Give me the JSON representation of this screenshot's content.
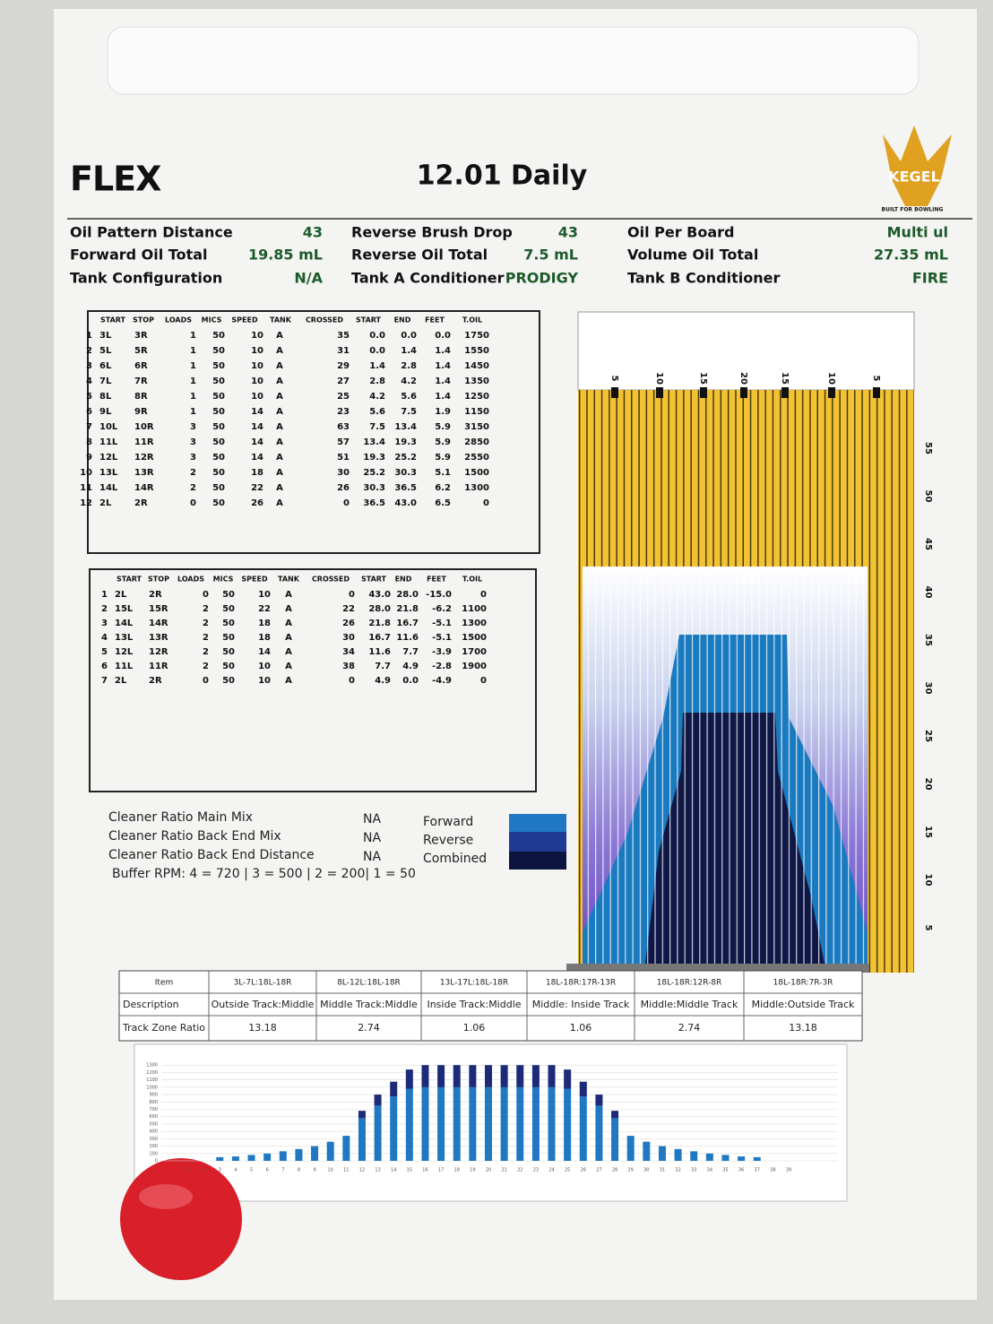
{
  "header": {
    "logo": "FLEX",
    "title": "12.01 Daily",
    "brand": "KEGEL",
    "tagline": "BUILT FOR BOWLING"
  },
  "specs": [
    {
      "label": "Oil Pattern Distance",
      "value": "43"
    },
    {
      "label": "Forward Oil Total",
      "value": "19.85 mL"
    },
    {
      "label": "Tank Configuration",
      "value": "N/A"
    },
    {
      "label": "Reverse Brush Drop",
      "value": "43"
    },
    {
      "label": "Reverse Oil Total",
      "value": "7.5 mL"
    },
    {
      "label": "Tank A Conditioner",
      "value": "PRODIGY"
    },
    {
      "label": "Oil Per Board",
      "value": "Multi ul"
    },
    {
      "label": "Volume Oil Total",
      "value": "27.35 mL"
    },
    {
      "label": "Tank B Conditioner",
      "value": "FIRE"
    }
  ],
  "forward_table": {
    "columns": [
      "START",
      "STOP",
      "LOADS",
      "MICS",
      "SPEED",
      "TANK",
      "CROSSED",
      "START",
      "END",
      "FEET",
      "T.OIL"
    ],
    "rows": [
      [
        "1",
        "3L",
        "3R",
        "1",
        "50",
        "10",
        "A",
        "35",
        "0.0",
        "0.0",
        "0.0",
        "1750"
      ],
      [
        "2",
        "5L",
        "5R",
        "1",
        "50",
        "10",
        "A",
        "31",
        "0.0",
        "1.4",
        "1.4",
        "1550"
      ],
      [
        "3",
        "6L",
        "6R",
        "1",
        "50",
        "10",
        "A",
        "29",
        "1.4",
        "2.8",
        "1.4",
        "1450"
      ],
      [
        "4",
        "7L",
        "7R",
        "1",
        "50",
        "10",
        "A",
        "27",
        "2.8",
        "4.2",
        "1.4",
        "1350"
      ],
      [
        "5",
        "8L",
        "8R",
        "1",
        "50",
        "10",
        "A",
        "25",
        "4.2",
        "5.6",
        "1.4",
        "1250"
      ],
      [
        "6",
        "9L",
        "9R",
        "1",
        "50",
        "14",
        "A",
        "23",
        "5.6",
        "7.5",
        "1.9",
        "1150"
      ],
      [
        "7",
        "10L",
        "10R",
        "3",
        "50",
        "14",
        "A",
        "63",
        "7.5",
        "13.4",
        "5.9",
        "3150"
      ],
      [
        "8",
        "11L",
        "11R",
        "3",
        "50",
        "14",
        "A",
        "57",
        "13.4",
        "19.3",
        "5.9",
        "2850"
      ],
      [
        "9",
        "12L",
        "12R",
        "3",
        "50",
        "14",
        "A",
        "51",
        "19.3",
        "25.2",
        "5.9",
        "2550"
      ],
      [
        "10",
        "13L",
        "13R",
        "2",
        "50",
        "18",
        "A",
        "30",
        "25.2",
        "30.3",
        "5.1",
        "1500"
      ],
      [
        "11",
        "14L",
        "14R",
        "2",
        "50",
        "22",
        "A",
        "26",
        "30.3",
        "36.5",
        "6.2",
        "1300"
      ],
      [
        "12",
        "2L",
        "2R",
        "0",
        "50",
        "26",
        "A",
        "0",
        "36.5",
        "43.0",
        "6.5",
        "0"
      ]
    ]
  },
  "reverse_table": {
    "columns": [
      "START",
      "STOP",
      "LOADS",
      "MICS",
      "SPEED",
      "TANK",
      "CROSSED",
      "START",
      "END",
      "FEET",
      "T.OIL"
    ],
    "rows": [
      [
        "1",
        "2L",
        "2R",
        "0",
        "50",
        "10",
        "A",
        "0",
        "43.0",
        "28.0",
        "-15.0",
        "0"
      ],
      [
        "2",
        "15L",
        "15R",
        "2",
        "50",
        "22",
        "A",
        "22",
        "28.0",
        "21.8",
        "-6.2",
        "1100"
      ],
      [
        "3",
        "14L",
        "14R",
        "2",
        "50",
        "18",
        "A",
        "26",
        "21.8",
        "16.7",
        "-5.1",
        "1300"
      ],
      [
        "4",
        "13L",
        "13R",
        "2",
        "50",
        "18",
        "A",
        "30",
        "16.7",
        "11.6",
        "-5.1",
        "1500"
      ],
      [
        "5",
        "12L",
        "12R",
        "2",
        "50",
        "14",
        "A",
        "34",
        "11.6",
        "7.7",
        "-3.9",
        "1700"
      ],
      [
        "6",
        "11L",
        "11R",
        "2",
        "50",
        "10",
        "A",
        "38",
        "7.7",
        "4.9",
        "-2.8",
        "1900"
      ],
      [
        "7",
        "2L",
        "2R",
        "0",
        "50",
        "10",
        "A",
        "0",
        "4.9",
        "0.0",
        "-4.9",
        "0"
      ]
    ]
  },
  "cleaner": {
    "items": [
      {
        "label": "Cleaner Ratio Main Mix",
        "value": "NA"
      },
      {
        "label": "Cleaner Ratio Back End Mix",
        "value": "NA"
      },
      {
        "label": "Cleaner Ratio Back End Distance",
        "value": "NA"
      }
    ],
    "buffer": "Buffer RPM: 4 = 720 | 3 = 500 | 2 = 200| 1 = 50",
    "legend": [
      "Forward",
      "Reverse",
      "Combined"
    ]
  },
  "pattern": {
    "top_labels": [
      "5",
      "10",
      "15",
      "20",
      "15",
      "10",
      "5"
    ],
    "side_labels": [
      "55",
      "50",
      "45",
      "40",
      "35",
      "30",
      "25",
      "20",
      "15",
      "10",
      "5"
    ]
  },
  "zones": {
    "header": [
      "Item",
      "3L-7L:18L-18R",
      "8L-12L:18L-18R",
      "13L-17L:18L-18R",
      "18L-18R:17R-13R",
      "18L-18R:12R-8R",
      "18L-18R:7R-3R"
    ],
    "rows": [
      [
        "Description",
        "Outside Track:Middle",
        "Middle Track:Middle",
        "Inside Track:Middle",
        "Middle: Inside Track",
        "Middle:Middle Track",
        "Middle:Outside Track"
      ],
      [
        "Track Zone Ratio",
        "13.18",
        "2.74",
        "1.06",
        "1.06",
        "2.74",
        "13.18"
      ]
    ]
  },
  "chart_data": {
    "type": "stacked_bar",
    "categories": [
      1,
      2,
      3,
      4,
      5,
      6,
      7,
      8,
      9,
      10,
      11,
      12,
      13,
      14,
      15,
      16,
      17,
      18,
      19,
      20,
      21,
      22,
      23,
      24,
      25,
      26,
      27,
      28,
      29,
      30,
      31,
      32,
      33,
      34,
      35,
      36,
      37,
      38,
      39
    ],
    "series": [
      {
        "color": "#1f78c1",
        "values": [
          0,
          0,
          50,
          60,
          80,
          100,
          130,
          160,
          200,
          260,
          340,
          580,
          750,
          875,
          980,
          1000,
          1000,
          1000,
          1000,
          1000,
          1000,
          1000,
          1000,
          1000,
          980,
          875,
          750,
          580,
          340,
          260,
          200,
          160,
          130,
          100,
          80,
          60,
          50,
          0,
          0
        ]
      },
      {
        "color": "#1c2a78",
        "values": [
          0,
          0,
          0,
          0,
          0,
          0,
          0,
          0,
          0,
          0,
          0,
          100,
          150,
          200,
          260,
          300,
          300,
          300,
          300,
          300,
          300,
          300,
          300,
          300,
          260,
          200,
          150,
          100,
          0,
          0,
          0,
          0,
          0,
          0,
          0,
          0,
          0,
          0,
          0
        ]
      }
    ],
    "ylim": [
      0,
      1400
    ],
    "yticks": [
      0,
      100,
      200,
      300,
      400,
      500,
      600,
      700,
      800,
      900,
      1000,
      1100,
      1200,
      1300
    ],
    "grid": true
  }
}
